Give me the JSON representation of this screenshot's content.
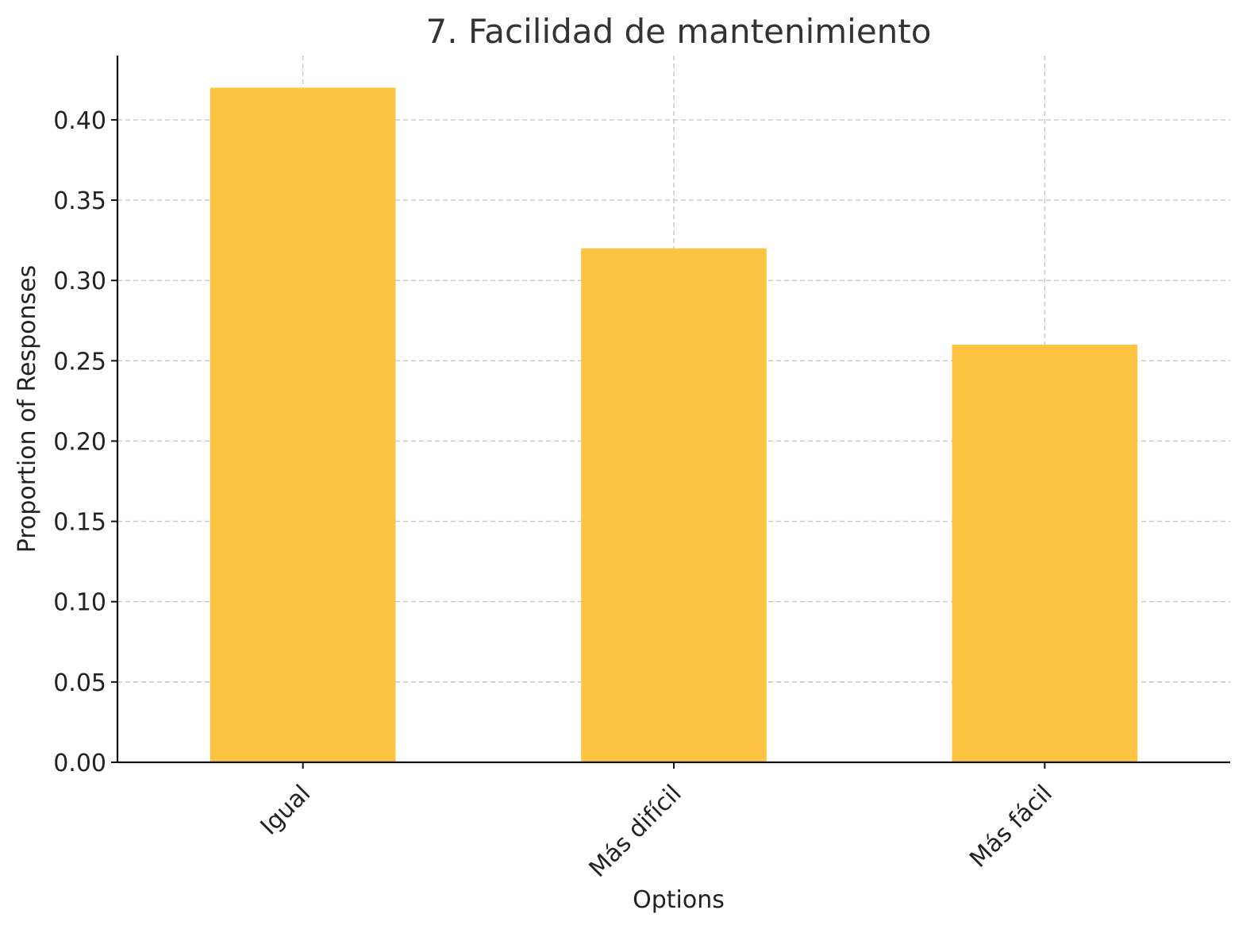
{
  "chart_data": {
    "type": "bar",
    "title": "7. Facilidad de mantenimiento",
    "xlabel": "Options",
    "ylabel": "Proportion of Responses",
    "categories": [
      "Igual",
      "Más difícil",
      "Más fácil"
    ],
    "values": [
      0.42,
      0.32,
      0.26
    ],
    "ylim": [
      0,
      0.44
    ],
    "yticks": [
      "0.00",
      "0.05",
      "0.10",
      "0.15",
      "0.20",
      "0.25",
      "0.30",
      "0.35",
      "0.40"
    ],
    "grid": true,
    "bar_color": "#FFC342"
  }
}
